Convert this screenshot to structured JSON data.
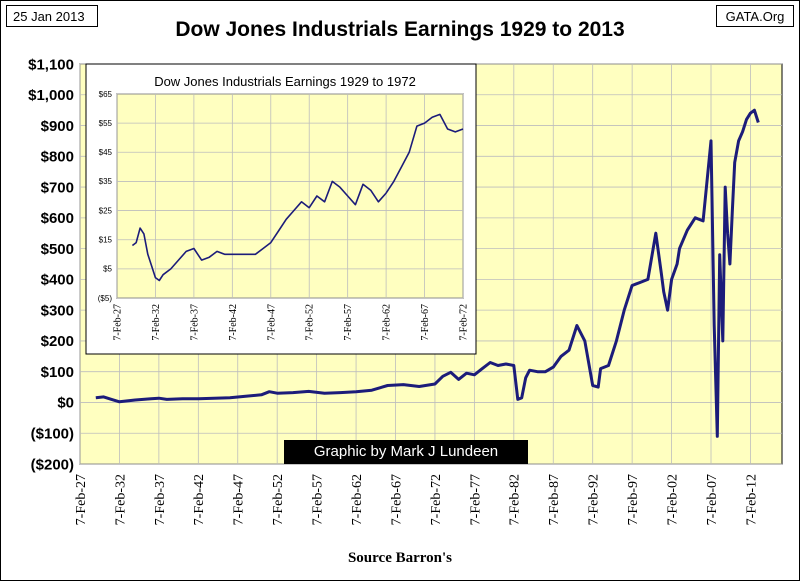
{
  "header": {
    "date": "25 Jan 2013",
    "source_site": "GATA.Org"
  },
  "footer": {
    "credit": "Graphic by Mark J Lundeen",
    "source": "Source Barron's"
  },
  "chart_data": [
    {
      "type": "line",
      "title": "Dow Jones Industrials Earnings 1929 to 2013",
      "xlabel": "Source Barron's",
      "ylabel": "",
      "xlim": [
        1927,
        2016
      ],
      "ylim": [
        -200,
        1100
      ],
      "yticks": [
        -200,
        -100,
        0,
        100,
        200,
        300,
        400,
        500,
        600,
        700,
        800,
        900,
        1000,
        1100
      ],
      "ytick_labels": [
        "($200)",
        "($100)",
        "$0",
        "$100",
        "$200",
        "$300",
        "$400",
        "$500",
        "$600",
        "$700",
        "$800",
        "$900",
        "$1,000",
        "$1,100"
      ],
      "xticks": [
        1927,
        1932,
        1937,
        1942,
        1947,
        1952,
        1957,
        1962,
        1967,
        1972,
        1977,
        1982,
        1987,
        1992,
        1997,
        2002,
        2007,
        2012
      ],
      "xtick_labels": [
        "7-Feb-27",
        "7-Feb-32",
        "7-Feb-37",
        "7-Feb-42",
        "7-Feb-47",
        "7-Feb-52",
        "7-Feb-57",
        "7-Feb-62",
        "7-Feb-67",
        "7-Feb-72",
        "7-Feb-77",
        "7-Feb-82",
        "7-Feb-87",
        "7-Feb-92",
        "7-Feb-97",
        "7-Feb-02",
        "7-Feb-07",
        "7-Feb-12"
      ],
      "grid": true,
      "series": [
        {
          "name": "Dow Jones Industrials Earnings",
          "x": [
            1929,
            1930,
            1931,
            1932,
            1933,
            1934,
            1936,
            1937,
            1938,
            1940,
            1942,
            1944,
            1946,
            1948,
            1950,
            1951,
            1952,
            1954,
            1956,
            1958,
            1960,
            1962,
            1964,
            1966,
            1968,
            1970,
            1972,
            1973,
            1974,
            1975,
            1976,
            1977,
            1978,
            1979,
            1980,
            1981,
            1982,
            1982.5,
            1983,
            1983.5,
            1984,
            1985,
            1986,
            1987,
            1988,
            1989,
            1990,
            1991,
            1992,
            1992.7,
            1993,
            1994,
            1995,
            1996,
            1997,
            1998,
            1999,
            2000,
            2000.7,
            2001,
            2001.5,
            2002,
            2002.7,
            2003,
            2004,
            2005,
            2006,
            2007,
            2007.4,
            2007.8,
            2008.1,
            2008.5,
            2008.8,
            2009.1,
            2009.4,
            2009.7,
            2010,
            2010.5,
            2011,
            2011.5,
            2012,
            2012.5,
            2013
          ],
          "values": [
            15,
            18,
            10,
            2,
            5,
            8,
            12,
            14,
            10,
            12,
            12,
            14,
            15,
            20,
            25,
            35,
            30,
            32,
            36,
            30,
            32,
            35,
            40,
            55,
            58,
            52,
            60,
            85,
            98,
            75,
            95,
            90,
            110,
            130,
            120,
            125,
            120,
            10,
            15,
            80,
            105,
            100,
            100,
            115,
            150,
            170,
            250,
            200,
            55,
            50,
            110,
            120,
            200,
            300,
            380,
            390,
            400,
            550,
            420,
            360,
            300,
            400,
            450,
            500,
            560,
            600,
            590,
            850,
            250,
            -110,
            480,
            200,
            700,
            550,
            450,
            620,
            780,
            850,
            880,
            920,
            940,
            950,
            910
          ]
        }
      ]
    },
    {
      "type": "line",
      "title": "Dow Jones Industrials Earnings 1929 to 1972",
      "xlabel": "",
      "ylabel": "",
      "xlim": [
        1927,
        1972
      ],
      "ylim": [
        -5,
        65
      ],
      "yticks": [
        -5,
        5,
        15,
        25,
        35,
        45,
        55,
        65
      ],
      "ytick_labels": [
        "($5)",
        "$5",
        "$15",
        "$25",
        "$35",
        "$45",
        "$55",
        "$65"
      ],
      "xticks": [
        1927,
        1932,
        1937,
        1942,
        1947,
        1952,
        1957,
        1962,
        1967,
        1972
      ],
      "xtick_labels": [
        "7-Feb-27",
        "7-Feb-32",
        "7-Feb-37",
        "7-Feb-42",
        "7-Feb-47",
        "7-Feb-52",
        "7-Feb-57",
        "7-Feb-62",
        "7-Feb-67",
        "7-Feb-72"
      ],
      "grid": true,
      "series": [
        {
          "name": "Dow Jones Industrials Earnings",
          "x": [
            1929,
            1929.5,
            1930,
            1930.5,
            1931,
            1931.5,
            1932,
            1932.5,
            1933,
            1934,
            1935,
            1936,
            1937,
            1938,
            1939,
            1940,
            1941,
            1942,
            1943,
            1944,
            1945,
            1946,
            1947,
            1948,
            1949,
            1950,
            1951,
            1952,
            1953,
            1954,
            1955,
            1956,
            1957,
            1958,
            1959,
            1960,
            1961,
            1962,
            1963,
            1964,
            1965,
            1966,
            1967,
            1968,
            1969,
            1970,
            1971,
            1972
          ],
          "values": [
            13,
            14,
            19,
            17,
            10,
            6,
            2,
            1,
            3,
            5,
            8,
            11,
            12,
            8,
            9,
            11,
            10,
            10,
            10,
            10,
            10,
            12,
            14,
            18,
            22,
            25,
            28,
            26,
            30,
            28,
            35,
            33,
            30,
            27,
            34,
            32,
            28,
            31,
            35,
            40,
            45,
            54,
            55,
            57,
            58,
            53,
            52,
            53
          ]
        }
      ]
    }
  ]
}
